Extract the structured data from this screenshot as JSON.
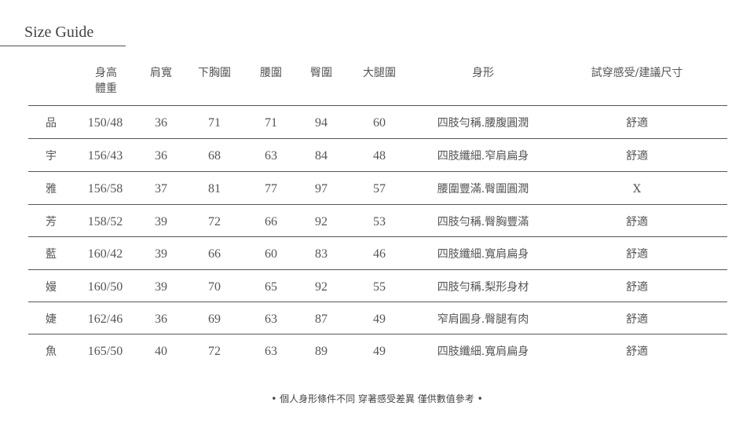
{
  "title": "Size Guide",
  "headers": [
    "",
    "身高\n體重",
    "肩寬",
    "下胸圍",
    "腰圍",
    "臀圍",
    "大腿圍",
    "身形",
    "試穿感受/建議尺寸"
  ],
  "header_height_line1": "身高",
  "header_height_line2": "體重",
  "rows": [
    {
      "name": "品",
      "hw": "150/48",
      "shoulder": "36",
      "underbust": "71",
      "waist": "71",
      "hip": "94",
      "thigh": "60",
      "shape": "四肢勻稱.腰腹圓潤",
      "fit": "舒適"
    },
    {
      "name": "宇",
      "hw": "156/43",
      "shoulder": "36",
      "underbust": "68",
      "waist": "63",
      "hip": "84",
      "thigh": "48",
      "shape": "四肢纖細.窄肩扁身",
      "fit": "舒適"
    },
    {
      "name": "雅",
      "hw": "156/58",
      "shoulder": "37",
      "underbust": "81",
      "waist": "77",
      "hip": "97",
      "thigh": "57",
      "shape": "腰圍豐滿.臀圍圓潤",
      "fit": "X"
    },
    {
      "name": "芳",
      "hw": "158/52",
      "shoulder": "39",
      "underbust": "72",
      "waist": "66",
      "hip": "92",
      "thigh": "53",
      "shape": "四肢勻稱.臀胸豐滿",
      "fit": "舒適"
    },
    {
      "name": "藍",
      "hw": "160/42",
      "shoulder": "39",
      "underbust": "66",
      "waist": "60",
      "hip": "83",
      "thigh": "46",
      "shape": "四肢纖細.寬肩扁身",
      "fit": "舒適"
    },
    {
      "name": "嫚",
      "hw": "160/50",
      "shoulder": "39",
      "underbust": "70",
      "waist": "65",
      "hip": "92",
      "thigh": "55",
      "shape": "四肢勻稱.梨形身材",
      "fit": "舒適"
    },
    {
      "name": "婕",
      "hw": "162/46",
      "shoulder": "36",
      "underbust": "69",
      "waist": "63",
      "hip": "87",
      "thigh": "49",
      "shape": "窄肩圓身.臀腿有肉",
      "fit": "舒適"
    },
    {
      "name": "魚",
      "hw": "165/50",
      "shoulder": "40",
      "underbust": "72",
      "waist": "63",
      "hip": "89",
      "thigh": "49",
      "shape": "四肢纖細.寬肩扁身",
      "fit": "舒適"
    }
  ],
  "footer": "• 個人身形條件不同 穿著感受差異 僅供數值參考 •"
}
